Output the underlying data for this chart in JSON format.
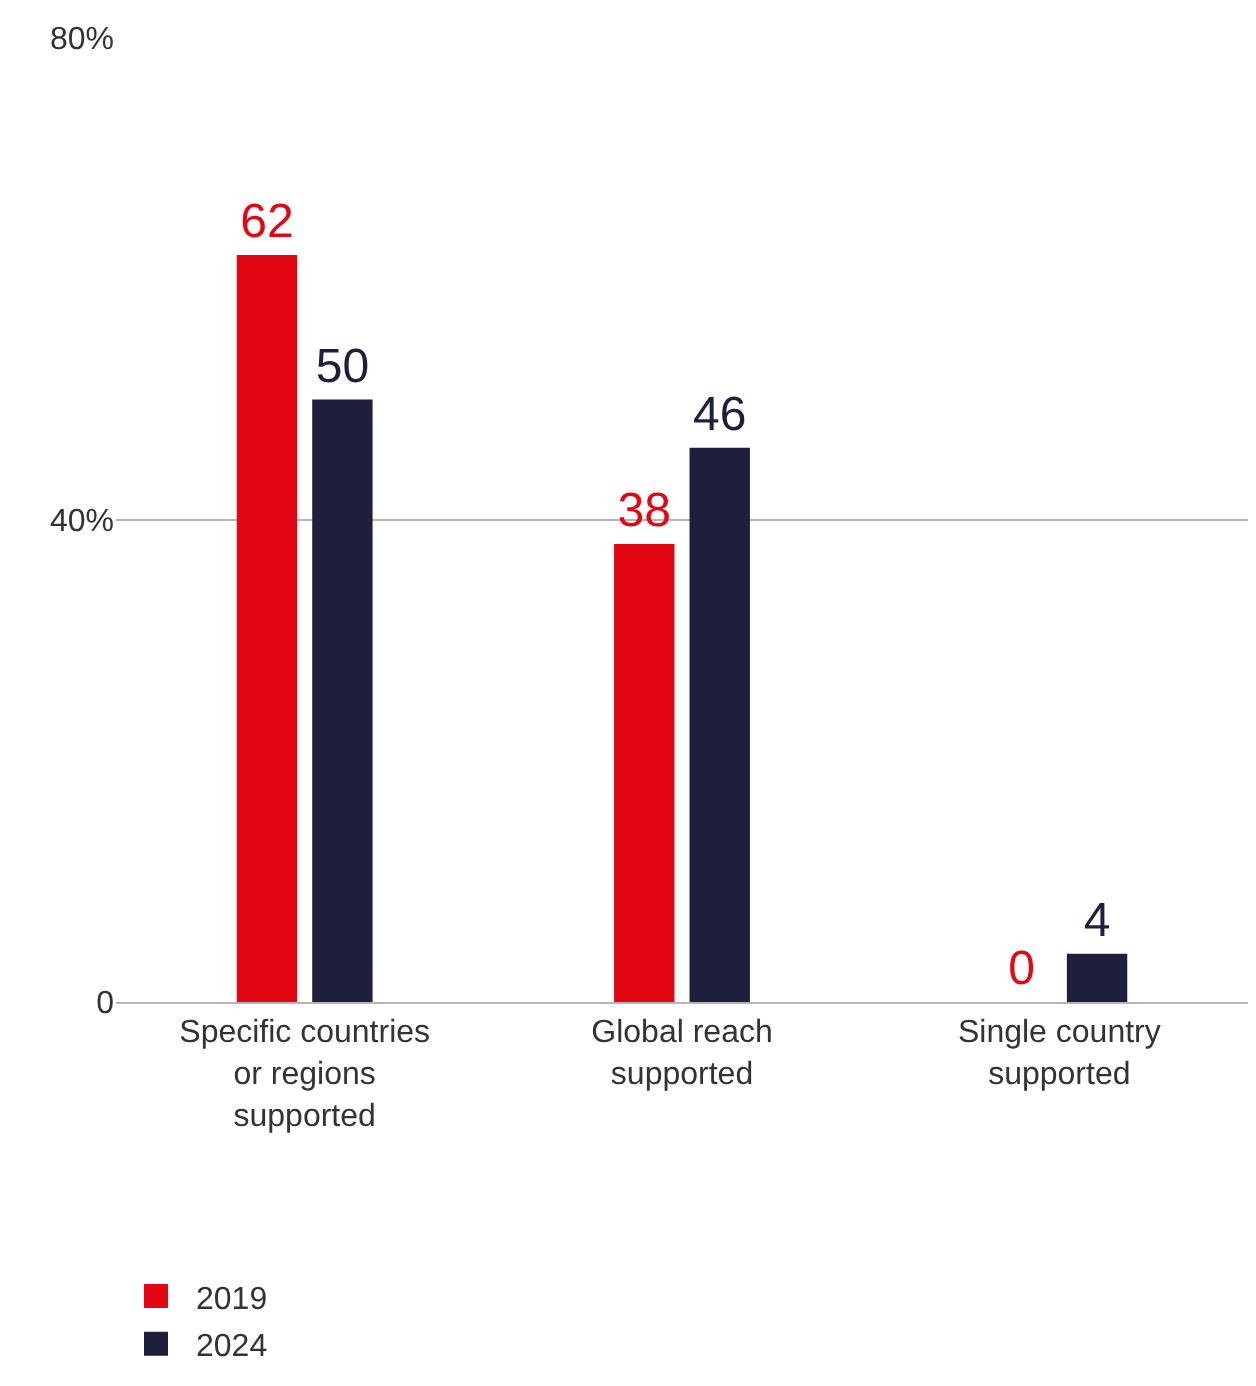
{
  "chart_data": {
    "type": "bar",
    "categories": [
      "Specific countries or regions supported",
      "Global reach supported",
      "Single country supported"
    ],
    "series": [
      {
        "name": "2019",
        "color": "#e30613",
        "values": [
          62,
          38,
          0
        ]
      },
      {
        "name": "2024",
        "color": "#1e1f3d",
        "values": [
          50,
          46,
          4
        ]
      }
    ],
    "ylim": [
      0,
      80
    ],
    "yticks": [
      0,
      {
        "value": 40,
        "label": "40%"
      },
      {
        "value": 80,
        "label": "80%"
      }
    ],
    "grid": "y",
    "legend": "bottom",
    "data_labels": true
  }
}
